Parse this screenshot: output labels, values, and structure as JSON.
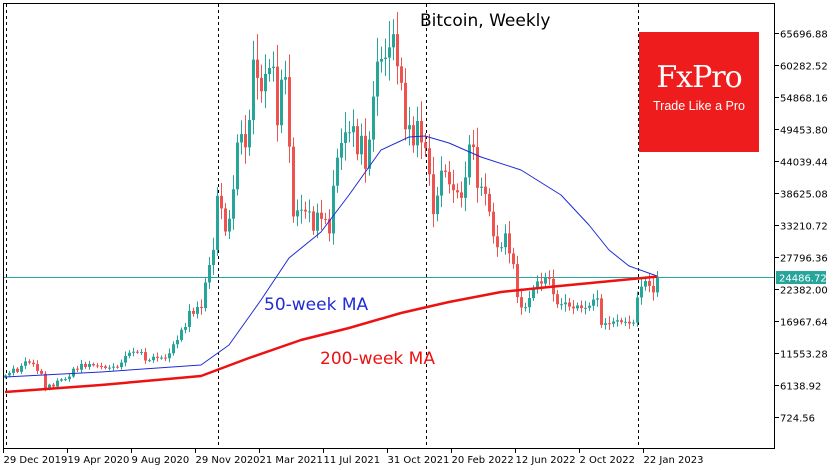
{
  "chart_data": {
    "type": "candlestick",
    "title": "Bitcoin, Weekly",
    "xlabel": "",
    "ylabel": "",
    "ylim": [
      -1500,
      69000
    ],
    "y_ticks": [
      "65696.88",
      "60282.52",
      "54868.16",
      "49453.80",
      "44039.44",
      "38625.08",
      "33210.72",
      "27796.36",
      "22382.00",
      "16967.64",
      "11553.28",
      "6138.92",
      "724.56"
    ],
    "y_tick_values": [
      65696.88,
      60282.52,
      54868.16,
      49453.8,
      44039.44,
      38625.08,
      33210.72,
      27796.36,
      22382.0,
      16967.64,
      11553.28,
      6138.92,
      724.56
    ],
    "x_ticks": [
      "29 Dec 2019",
      "19 Apr 2020",
      "9 Aug 2020",
      "29 Nov 2020",
      "21 Mar 2021",
      "11 Jul 2021",
      "31 Oct 2021",
      "20 Feb 2022",
      "12 Jun 2022",
      "2 Oct 2022",
      "22 Jan 2023"
    ],
    "x_tick_weeks": [
      0,
      16,
      32,
      48,
      64,
      80,
      96,
      112,
      128,
      144,
      160
    ],
    "year_separator_weeks": [
      0,
      53,
      105,
      158
    ],
    "current_price": 24486.72,
    "current_price_label": "24486.72",
    "first_open": 7400,
    "weekly_closes": [
      7760,
      8180,
      8900,
      8370,
      9380,
      10140,
      9910,
      9670,
      8540,
      8030,
      5360,
      6200,
      5880,
      6870,
      7100,
      7120,
      7570,
      8900,
      8720,
      9700,
      9190,
      9700,
      9460,
      9350,
      9300,
      9010,
      9080,
      9240,
      9160,
      9930,
      11050,
      11600,
      11770,
      11660,
      11710,
      10280,
      10330,
      10920,
      10730,
      10780,
      10670,
      11500,
      13030,
      13760,
      15480,
      15960,
      18680,
      18180,
      19350,
      19170,
      23480,
      26440,
      29000,
      38150,
      36020,
      32100,
      34270,
      39250,
      47170,
      48600,
      46340,
      50970,
      61190,
      58100,
      55840,
      58760,
      59780,
      60000,
      50090,
      57800,
      58230,
      46460,
      34660,
      35680,
      35800,
      35500,
      35510,
      32240,
      35300,
      34250,
      34240,
      31780,
      39860,
      44610,
      47080,
      48890,
      48900,
      49930,
      45170,
      48300,
      42710,
      47660,
      54940,
      60860,
      61300,
      61530,
      63270,
      65500,
      60060,
      57270,
      49400,
      50100,
      46680,
      50800,
      47170,
      46200,
      41800,
      35050,
      38180,
      42410,
      42200,
      40100,
      39100,
      38730,
      37800,
      41260,
      46830,
      46400,
      39500,
      39700,
      38470,
      35470,
      31300,
      29440,
      29450,
      31800,
      28400,
      26600,
      21000,
      19250,
      19300,
      20850,
      22460,
      23670,
      23300,
      24400,
      24100,
      21500,
      19800,
      19800,
      20100,
      19400,
      19100,
      19600,
      19150,
      19200,
      19550,
      20600,
      20800,
      16300,
      16600,
      16500,
      16880,
      17100,
      16770,
      16840,
      16550,
      16700,
      20950,
      22780,
      23740,
      22900,
      21800,
      24486.72
    ],
    "series": [
      {
        "name": "50-week MA",
        "label": "50-week MA",
        "color": "#1f2bd6",
        "weeks": [
          0,
          24,
          49,
          56,
          64,
          71,
          79,
          86,
          94,
          101,
          105,
          111,
          119,
          129,
          139,
          146,
          151,
          156,
          163
        ],
        "values": [
          7492,
          8338,
          9522,
          12906,
          20520,
          27627,
          32026,
          38287,
          45900,
          48100,
          48270,
          47085,
          44716,
          42516,
          38287,
          33211,
          28981,
          26274,
          24582
        ]
      },
      {
        "name": "200-week MA",
        "label": "200-week MA",
        "color": "#ee1111",
        "weeks": [
          0,
          24,
          49,
          61,
          74,
          86,
          99,
          111,
          124,
          136,
          149,
          163
        ],
        "values": [
          4955,
          6138,
          7661,
          10707,
          13753,
          15783,
          18321,
          20182,
          21874,
          22720,
          23566,
          24486
        ]
      }
    ],
    "colors": {
      "bull": "#26a69a",
      "bear": "#ef5350",
      "price_line": "#26a69a"
    }
  },
  "logo": {
    "brand": "FxPro",
    "tagline": "Trade Like a Pro",
    "color": "#ee1c1c"
  }
}
